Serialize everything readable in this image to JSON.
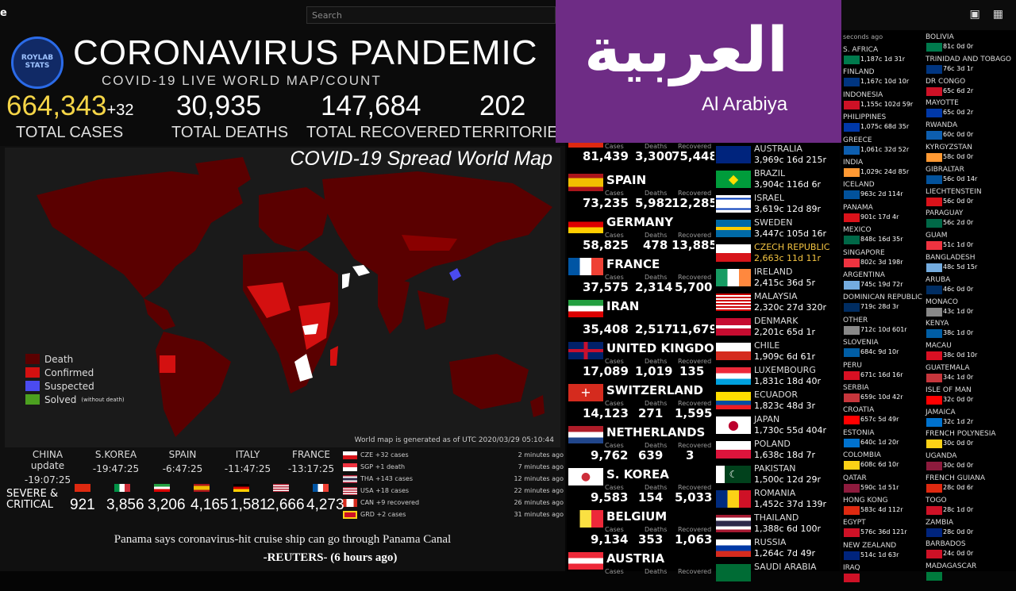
{
  "topbar": {
    "logo": "e",
    "search_placeholder": "Search",
    "icons": [
      "camera-icon",
      "apps-grid-icon"
    ]
  },
  "header": {
    "logo_text": "ROYLAB STATS",
    "title": "CORONAVIRUS PANDEMIC",
    "subtitle": "COVID-19 LIVE WORLD MAP/COUNT"
  },
  "stats": {
    "total_cases": "664,343",
    "cases_delta": "+32",
    "total_cases_label": "TOTAL CASES",
    "total_deaths": "30,935",
    "total_deaths_label": "TOTAL DEATHS",
    "total_recovered": "147,684",
    "total_recovered_label": "TOTAL RECOVERED",
    "territories": "202",
    "territories_label": "TERRITORIES"
  },
  "map": {
    "title": "COVID-19 Spread World Map",
    "note": "World map is generated as of UTC 2020/03/29 05:10:44",
    "legend": [
      {
        "label": "Death",
        "color": "#5a0000",
        "note": ""
      },
      {
        "label": "Confirmed",
        "color": "#d41010",
        "note": ""
      },
      {
        "label": "Suspected",
        "color": "#4b4bf0",
        "note": ""
      },
      {
        "label": "Solved",
        "color": "#4ca020",
        "note": "(without death)"
      }
    ]
  },
  "times": [
    {
      "name": "CHINA update",
      "time": "-19:07:25"
    },
    {
      "name": "S.KOREA",
      "time": "-19:47:25"
    },
    {
      "name": "SPAIN",
      "time": "-6:47:25"
    },
    {
      "name": "ITALY",
      "time": "-11:47:25"
    },
    {
      "name": "FRANCE",
      "time": "-13:17:25"
    }
  ],
  "critical": {
    "label_line1": "SEVERE &",
    "label_line2": "CRITICAL",
    "values": [
      "921",
      "3,856",
      "3,206",
      "4,165",
      "1,581",
      "2,666",
      "4,273"
    ]
  },
  "feed": [
    {
      "text": "CZE +32 cases",
      "ago": "2 minutes ago"
    },
    {
      "text": "SGP +1 death",
      "ago": "7 minutes ago"
    },
    {
      "text": "THA +143 cases",
      "ago": "12 minutes ago"
    },
    {
      "text": "USA +18 cases",
      "ago": "22 minutes ago"
    },
    {
      "text": "CAN +9 recovered",
      "ago": "26 minutes ago"
    },
    {
      "text": "GRD +2 cases",
      "ago": "31 minutes ago"
    }
  ],
  "news": {
    "headline": "Panama says coronavirus-hit cruise ship can go through Panama Canal",
    "source": "-REUTERS- (6 hours ago)"
  },
  "labels": {
    "cases": "Cases",
    "deaths": "Deaths",
    "recovered": "Recovered"
  },
  "countries_main": [
    {
      "name": "",
      "cases": "81,439",
      "deaths": "3,300",
      "recovered": "75,448"
    },
    {
      "name": "SPAIN",
      "cases": "73,235",
      "deaths": "5,982",
      "recovered": "12,285"
    },
    {
      "name": "GERMANY",
      "cases": "58,825",
      "deaths": "478",
      "recovered": "13,885"
    },
    {
      "name": "FRANCE",
      "cases": "37,575",
      "deaths": "2,314",
      "recovered": "5,700"
    },
    {
      "name": "IRAN",
      "cases": "35,408",
      "deaths": "2,517",
      "recovered": "11,679"
    },
    {
      "name": "UNITED KINGDOM",
      "cases": "17,089",
      "deaths": "1,019",
      "recovered": "135"
    },
    {
      "name": "SWITZERLAND",
      "cases": "14,123",
      "deaths": "271",
      "recovered": "1,595"
    },
    {
      "name": "NETHERLANDS",
      "cases": "9,762",
      "deaths": "639",
      "recovered": "3"
    },
    {
      "name": "S. KOREA",
      "cases": "9,583",
      "deaths": "154",
      "recovered": "5,033"
    },
    {
      "name": "BELGIUM",
      "cases": "9,134",
      "deaths": "353",
      "recovered": "1,063"
    },
    {
      "name": "AUSTRIA",
      "cases": "",
      "deaths": "",
      "recovered": ""
    }
  ],
  "countries_col3": [
    {
      "name": "AUSTRALIA",
      "vals": "3,969c 16d 215r"
    },
    {
      "name": "BRAZIL",
      "vals": "3,904c 116d 6r"
    },
    {
      "name": "ISRAEL",
      "vals": "3,619c 12d 89r"
    },
    {
      "name": "SWEDEN",
      "vals": "3,447c 105d 16r"
    },
    {
      "name": "CZECH REPUBLIC",
      "vals": "2,663c 11d 11r"
    },
    {
      "name": "IRELAND",
      "vals": "2,415c 36d 5r"
    },
    {
      "name": "MALAYSIA",
      "vals": "2,320c 27d 320r"
    },
    {
      "name": "DENMARK",
      "vals": "2,201c 65d 1r"
    },
    {
      "name": "CHILE",
      "vals": "1,909c 6d 61r"
    },
    {
      "name": "LUXEMBOURG",
      "vals": "1,831c 18d 40r"
    },
    {
      "name": "ECUADOR",
      "vals": "1,823c 48d 3r"
    },
    {
      "name": "JAPAN",
      "vals": "1,730c 55d 404r"
    },
    {
      "name": "POLAND",
      "vals": "1,638c 18d 7r"
    },
    {
      "name": "PAKISTAN",
      "vals": "1,500c 12d 29r"
    },
    {
      "name": "ROMANIA",
      "vals": "1,452c 37d 139r"
    },
    {
      "name": "THAILAND",
      "vals": "1,388c 6d 100r"
    },
    {
      "name": "RUSSIA",
      "vals": "1,264c 7d 49r"
    },
    {
      "name": "SAUDI ARABIA",
      "vals": ""
    }
  ],
  "col4_header": "seconds ago",
  "countries_col4": [
    {
      "name": "S. AFRICA",
      "vals": "1,187c 1d 31r"
    },
    {
      "name": "FINLAND",
      "vals": "1,167c 10d 10r"
    },
    {
      "name": "INDONESIA",
      "vals": "1,155c 102d 59r"
    },
    {
      "name": "PHILIPPINES",
      "vals": "1,075c 68d 35r"
    },
    {
      "name": "GREECE",
      "vals": "1,061c 32d 52r"
    },
    {
      "name": "INDIA",
      "vals": "1,029c 24d 85r"
    },
    {
      "name": "ICELAND",
      "vals": "963c 2d 114r"
    },
    {
      "name": "PANAMA",
      "vals": "901c 17d 4r"
    },
    {
      "name": "MEXICO",
      "vals": "848c 16d 35r"
    },
    {
      "name": "SINGAPORE",
      "vals": "802c 3d 198r"
    },
    {
      "name": "ARGENTINA",
      "vals": "745c 19d 72r"
    },
    {
      "name": "DOMINICAN REPUBLIC",
      "vals": "719c 28d 3r"
    },
    {
      "name": "OTHER",
      "vals": "712c 10d 601r"
    },
    {
      "name": "SLOVENIA",
      "vals": "684c 9d 10r"
    },
    {
      "name": "PERU",
      "vals": "671c 16d 16r"
    },
    {
      "name": "SERBIA",
      "vals": "659c 10d 42r"
    },
    {
      "name": "CROATIA",
      "vals": "657c 5d 49r"
    },
    {
      "name": "ESTONIA",
      "vals": "640c 1d 20r"
    },
    {
      "name": "COLOMBIA",
      "vals": "608c 6d 10r"
    },
    {
      "name": "QATAR",
      "vals": "590c 1d 51r"
    },
    {
      "name": "HONG KONG",
      "vals": "583c 4d 112r"
    },
    {
      "name": "EGYPT",
      "vals": "576c 36d 121r"
    },
    {
      "name": "NEW ZEALAND",
      "vals": "514c 1d 63r"
    },
    {
      "name": "IRAQ",
      "vals": ""
    }
  ],
  "countries_col5": [
    {
      "name": "BOLIVIA",
      "vals": "81c 0d 0r"
    },
    {
      "name": "TRINIDAD AND TOBAGO",
      "vals": "76c 3d 1r"
    },
    {
      "name": "DR CONGO",
      "vals": "65c 6d 2r"
    },
    {
      "name": "MAYOTTE",
      "vals": "65c 0d 2r"
    },
    {
      "name": "RWANDA",
      "vals": "60c 0d 0r"
    },
    {
      "name": "KYRGYZSTAN",
      "vals": "58c 0d 0r"
    },
    {
      "name": "GIBRALTAR",
      "vals": "56c 0d 14r"
    },
    {
      "name": "LIECHTENSTEIN",
      "vals": "56c 0d 0r"
    },
    {
      "name": "PARAGUAY",
      "vals": "56c 2d 0r"
    },
    {
      "name": "GUAM",
      "vals": "51c 1d 0r"
    },
    {
      "name": "BANGLADESH",
      "vals": "48c 5d 15r"
    },
    {
      "name": "ARUBA",
      "vals": "46c 0d 0r"
    },
    {
      "name": "MONACO",
      "vals": "43c 1d 0r"
    },
    {
      "name": "KENYA",
      "vals": "38c 1d 0r"
    },
    {
      "name": "MACAU",
      "vals": "38c 0d 10r"
    },
    {
      "name": "GUATEMALA",
      "vals": "34c 1d 0r"
    },
    {
      "name": "ISLE OF MAN",
      "vals": "32c 0d 0r"
    },
    {
      "name": "JAMAICA",
      "vals": "32c 1d 2r"
    },
    {
      "name": "FRENCH POLYNESIA",
      "vals": "30c 0d 0r"
    },
    {
      "name": "UGANDA",
      "vals": "30c 0d 0r"
    },
    {
      "name": "FRENCH GUIANA",
      "vals": "28c 0d 6r"
    },
    {
      "name": "TOGO",
      "vals": "28c 1d 0r"
    },
    {
      "name": "ZAMBIA",
      "vals": "28c 0d 0r"
    },
    {
      "name": "BARBADOS",
      "vals": "24c 0d 0r"
    },
    {
      "name": "MADAGASCAR",
      "vals": ""
    }
  ],
  "overlay": {
    "arabic": "العربية",
    "latin": "Al Arabiya",
    "color": "#6e2c85"
  }
}
